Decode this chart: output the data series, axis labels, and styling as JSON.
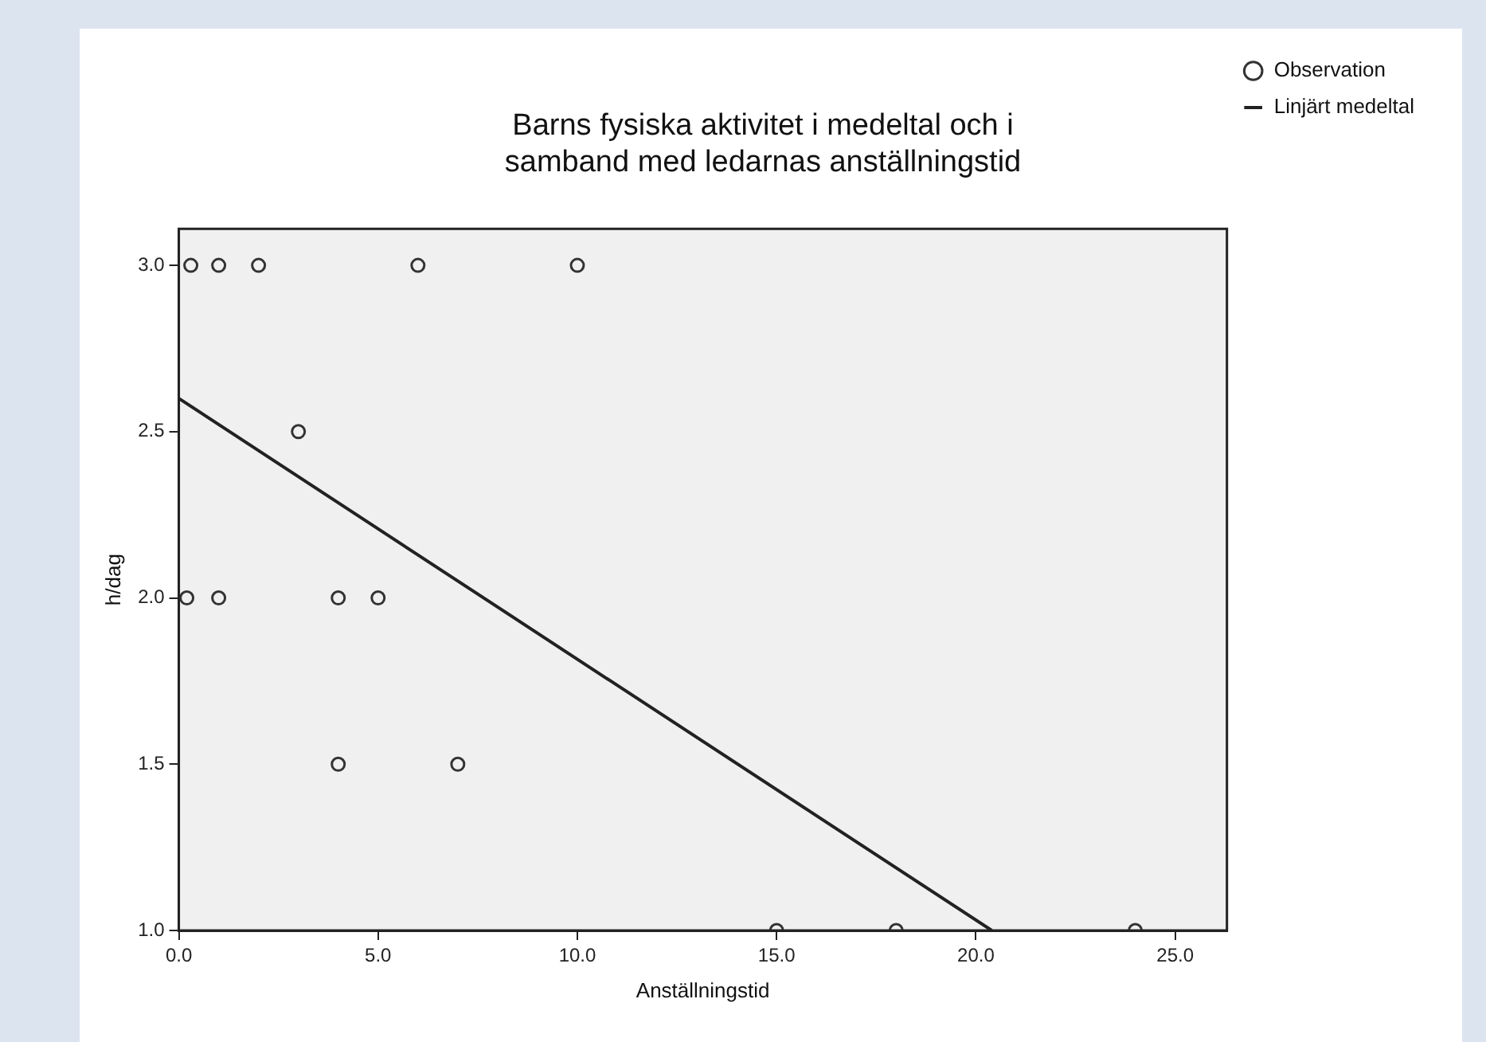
{
  "chart_data": {
    "type": "scatter",
    "title": "Barns fysiska aktivitet i medeltal och i\nsamband med ledarnas anställningstid",
    "xlabel": "Anställningstid",
    "ylabel": "h/dag",
    "series": [
      {
        "name": "Observation",
        "color": "#333333",
        "marker": "circle",
        "x": [
          0.3,
          1,
          2,
          6,
          10,
          3,
          0.2,
          1,
          4,
          5,
          4,
          7,
          15,
          18,
          24
        ],
        "values": [
          3,
          3,
          3,
          3,
          3,
          2.5,
          2,
          2,
          2,
          2,
          1.5,
          1.5,
          1,
          1,
          1
        ]
      },
      {
        "name": "Linjärt medeltal",
        "type": "line",
        "color": "#222222",
        "marker": "none",
        "line_style": "solid",
        "x": [
          0,
          20.4
        ],
        "values": [
          2.6,
          1.0
        ]
      }
    ],
    "xlim": [
      0,
      26.3
    ],
    "xticks": [
      {
        "value": 0,
        "label": "0.0"
      },
      {
        "value": 5,
        "label": "5.0"
      },
      {
        "value": 10,
        "label": "10.0"
      },
      {
        "value": 15,
        "label": "15.0"
      },
      {
        "value": 20,
        "label": "20.0"
      },
      {
        "value": 25,
        "label": "25.0"
      }
    ],
    "ylim": [
      1,
      3.11
    ],
    "yticks": [
      {
        "value": 1,
        "label": "1.0"
      },
      {
        "value": 1.5,
        "label": "1.5"
      },
      {
        "value": 2,
        "label": "2.0"
      },
      {
        "value": 2.5,
        "label": "2.5"
      },
      {
        "value": 3,
        "label": "3.0"
      }
    ],
    "grid": false,
    "legend": "top right"
  }
}
